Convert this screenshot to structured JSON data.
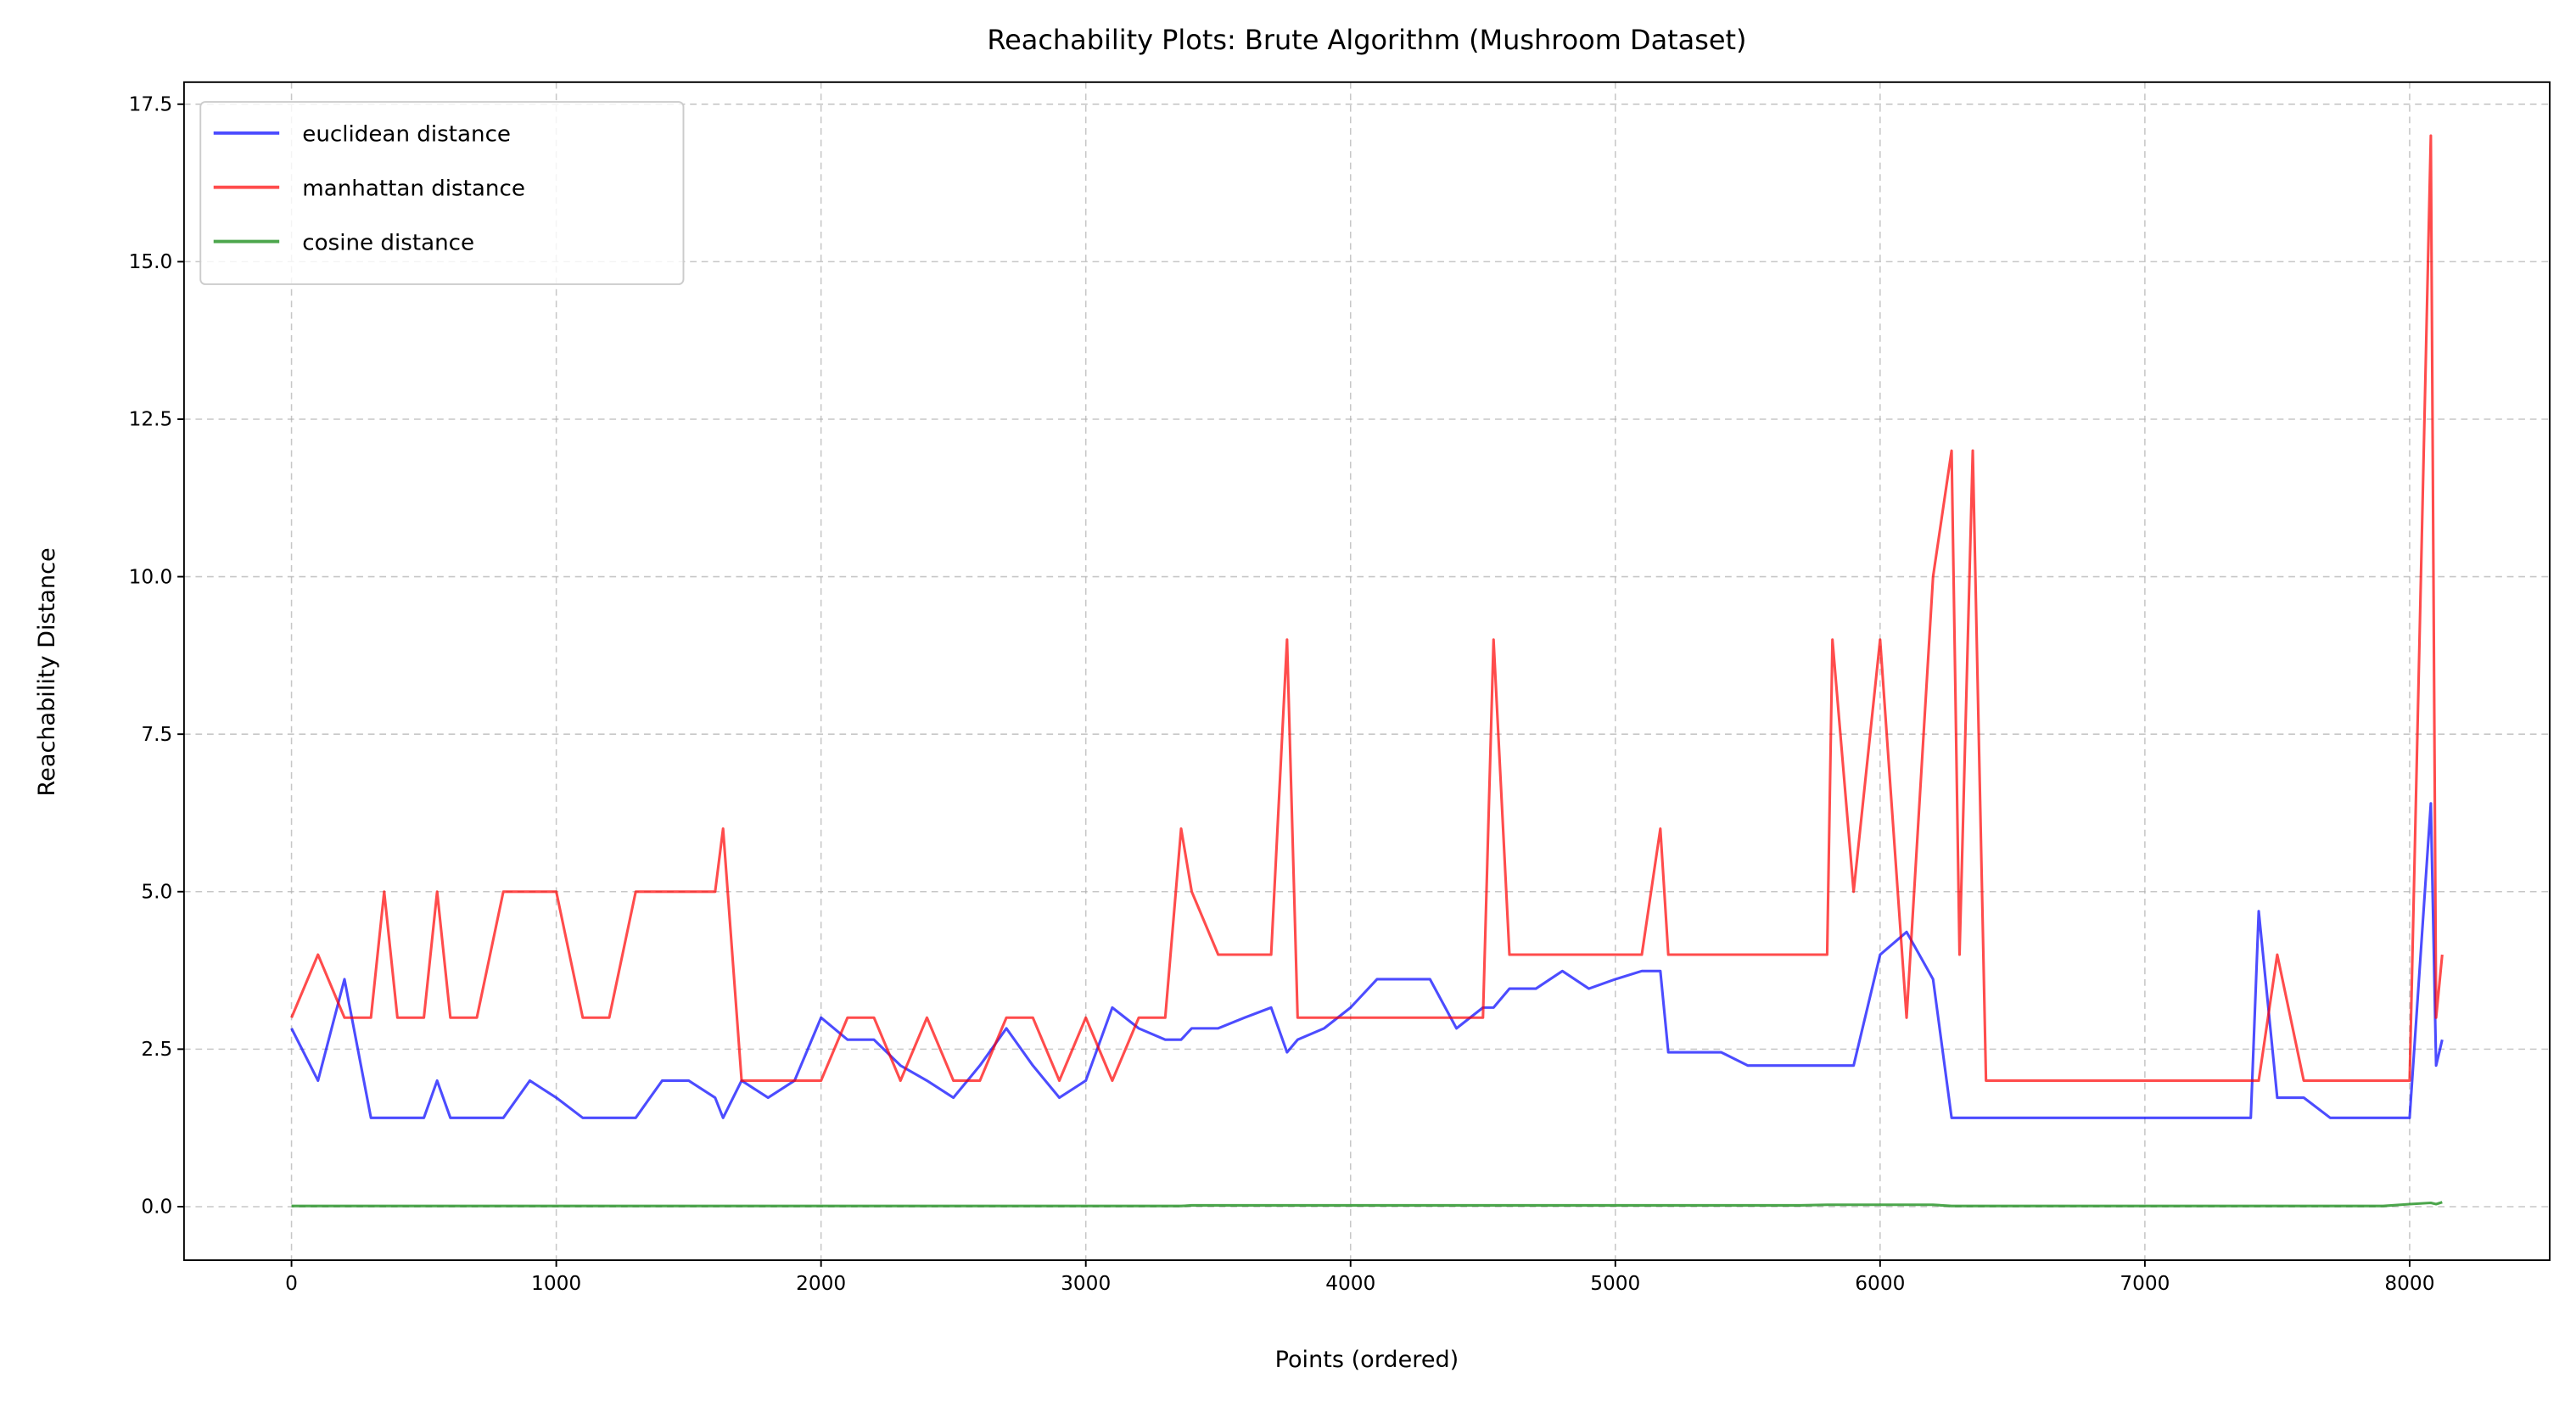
{
  "chart_data": {
    "type": "line",
    "title": "Reachability Plots: Brute Algorithm (Mushroom Dataset)",
    "x_label": "Points (ordered)",
    "y_label": "Reachability Distance",
    "x": [
      0,
      100,
      200,
      300,
      350,
      400,
      500,
      550,
      600,
      700,
      800,
      900,
      1000,
      1100,
      1200,
      1300,
      1400,
      1500,
      1600,
      1630,
      1700,
      1800,
      1900,
      2000,
      2100,
      2200,
      2300,
      2400,
      2500,
      2600,
      2700,
      2800,
      2900,
      3000,
      3100,
      3200,
      3300,
      3360,
      3400,
      3500,
      3600,
      3700,
      3760,
      3800,
      3900,
      4000,
      4100,
      4200,
      4300,
      4400,
      4500,
      4540,
      4600,
      4700,
      4800,
      4900,
      5000,
      5100,
      5170,
      5200,
      5300,
      5400,
      5500,
      5600,
      5700,
      5800,
      5820,
      5900,
      6000,
      6100,
      6200,
      6270,
      6300,
      6350,
      6400,
      6500,
      6600,
      6700,
      6800,
      6900,
      7000,
      7100,
      7200,
      7300,
      7400,
      7430,
      7500,
      7600,
      7700,
      7800,
      7900,
      8000,
      8080,
      8100,
      8123
    ],
    "series": [
      {
        "name": "euclidean distance",
        "color": "#0000ff",
        "values": [
          2.83,
          2,
          3.61,
          1.41,
          1.41,
          1.41,
          1.41,
          2,
          1.41,
          1.41,
          1.41,
          2,
          1.73,
          1.41,
          1.41,
          1.41,
          2,
          2,
          1.73,
          1.41,
          2,
          1.73,
          2,
          3,
          2.65,
          2.65,
          2.24,
          2,
          1.73,
          2.24,
          2.83,
          2.24,
          1.73,
          2,
          3.16,
          2.83,
          2.65,
          2.65,
          2.83,
          2.83,
          3,
          3.16,
          2.45,
          2.65,
          2.83,
          3.16,
          3.61,
          3.61,
          3.61,
          2.83,
          3.16,
          3.16,
          3.46,
          3.46,
          3.74,
          3.46,
          3.61,
          3.74,
          3.74,
          2.45,
          2.45,
          2.45,
          2.24,
          2.24,
          2.24,
          2.24,
          2.24,
          2.24,
          4,
          4.36,
          3.61,
          1.41,
          1.41,
          1.41,
          1.41,
          1.41,
          1.41,
          1.41,
          1.41,
          1.41,
          1.41,
          1.41,
          1.41,
          1.41,
          1.41,
          4.69,
          1.73,
          1.73,
          1.41,
          1.41,
          1.41,
          1.41,
          6.4,
          2.24,
          2.65
        ]
      },
      {
        "name": "manhattan distance",
        "color": "#ff0000",
        "values": [
          3,
          4,
          3,
          3,
          5,
          3,
          3,
          5,
          3,
          3,
          5,
          5,
          5,
          3,
          3,
          5,
          5,
          5,
          5,
          6,
          2,
          2,
          2,
          2,
          3,
          3,
          2,
          3,
          2,
          2,
          3,
          3,
          2,
          3,
          2,
          3,
          3,
          6,
          5,
          4,
          4,
          4,
          9,
          3,
          3,
          3,
          3,
          3,
          3,
          3,
          3,
          9,
          4,
          4,
          4,
          4,
          4,
          4,
          6,
          4,
          4,
          4,
          4,
          4,
          4,
          4,
          9,
          5,
          9,
          3,
          10,
          12,
          4,
          12,
          2,
          2,
          2,
          2,
          2,
          2,
          2,
          2,
          2,
          2,
          2,
          2,
          4,
          2,
          2,
          2,
          2,
          2,
          17,
          3,
          4
        ]
      },
      {
        "name": "cosine distance",
        "color": "#008000",
        "values": [
          0.01,
          0.01,
          0.01,
          0.01,
          0.01,
          0.01,
          0.01,
          0.01,
          0.01,
          0.01,
          0.01,
          0.01,
          0.01,
          0.01,
          0.01,
          0.01,
          0.01,
          0.01,
          0.01,
          0.01,
          0.01,
          0.01,
          0.01,
          0.01,
          0.01,
          0.01,
          0.01,
          0.01,
          0.01,
          0.01,
          0.01,
          0.01,
          0.01,
          0.01,
          0.01,
          0.01,
          0.01,
          0.01,
          0.02,
          0.02,
          0.02,
          0.02,
          0.02,
          0.02,
          0.02,
          0.02,
          0.02,
          0.02,
          0.02,
          0.02,
          0.02,
          0.02,
          0.02,
          0.02,
          0.02,
          0.02,
          0.02,
          0.02,
          0.02,
          0.02,
          0.02,
          0.02,
          0.02,
          0.02,
          0.02,
          0.03,
          0.03,
          0.03,
          0.03,
          0.03,
          0.03,
          0.01,
          0.01,
          0.01,
          0.01,
          0.01,
          0.01,
          0.01,
          0.01,
          0.01,
          0.01,
          0.01,
          0.01,
          0.01,
          0.01,
          0.01,
          0.01,
          0.01,
          0.01,
          0.01,
          0.01,
          0.04,
          0.06,
          0.04,
          0.07
        ]
      }
    ],
    "xlim": [
      -406,
      8529
    ],
    "ylim": [
      -0.85,
      17.85
    ],
    "xticks": [
      0,
      1000,
      2000,
      3000,
      4000,
      5000,
      6000,
      7000,
      8000
    ],
    "yticks": [
      {
        "value": 0,
        "label": "0.0"
      },
      {
        "value": 2.5,
        "label": "2.5"
      },
      {
        "value": 5,
        "label": "5.0"
      },
      {
        "value": 7.5,
        "label": "7.5"
      },
      {
        "value": 10,
        "label": "10.0"
      },
      {
        "value": 12.5,
        "label": "12.5"
      },
      {
        "value": 15,
        "label": "15.0"
      },
      {
        "value": 17.5,
        "label": "17.5"
      }
    ],
    "grid": true,
    "legend": "upper left"
  }
}
